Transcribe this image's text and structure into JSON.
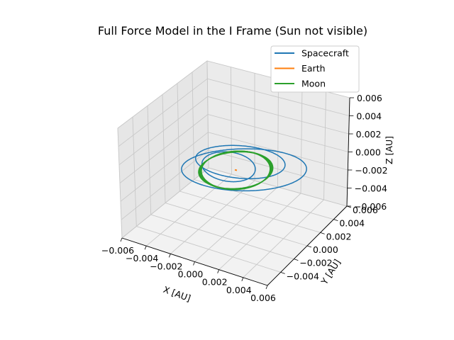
{
  "chart_data": {
    "type": "line",
    "projection": "3d",
    "title": "Full Force Model in the I Frame (Sun not visible)",
    "xlabel": "X [AU]",
    "ylabel": "Y [AU]",
    "zlabel": "Z [AU]",
    "xlim": [
      -0.006,
      0.006
    ],
    "ylim": [
      -0.006,
      0.006
    ],
    "zlim": [
      -0.006,
      0.006
    ],
    "xticks": [
      "−0.006",
      "−0.004",
      "−0.002",
      "0.000",
      "0.002",
      "0.004",
      "0.006"
    ],
    "yticks": [
      "−0.004",
      "−0.002",
      "0.000",
      "0.002",
      "0.004",
      "0.006"
    ],
    "zticks": [
      "−0.006",
      "−0.004",
      "−0.002",
      "0.000",
      "0.002",
      "0.004",
      "0.006"
    ],
    "grid": true,
    "legend_position": "top-right",
    "series": [
      {
        "name": "Spacecraft",
        "color": "#1f77b4",
        "description": "inclined elliptical orbits about Earth, semi-major axis up to about 0.0045 AU",
        "orbits": [
          {
            "cx": 0.0006,
            "cy": 0.0002,
            "a": 0.0045,
            "b": 0.0025,
            "rot_deg": 30,
            "incl_deg": 8
          },
          {
            "cx": -0.0002,
            "cy": 0.001,
            "a": 0.0033,
            "b": 0.002,
            "rot_deg": 15,
            "incl_deg": 6
          },
          {
            "cx": -0.0006,
            "cy": 0.0,
            "a": 0.0022,
            "b": 0.0017,
            "rot_deg": -20,
            "incl_deg": 5
          }
        ]
      },
      {
        "name": "Earth",
        "color": "#ff7f0e",
        "points": [
          [
            -8e-05,
            0.0,
            0.0
          ],
          [
            8e-05,
            0.0,
            0.0
          ]
        ]
      },
      {
        "name": "Moon",
        "color": "#2ca02c",
        "orbit": {
          "cx": 0.0,
          "cy": 0.0,
          "r": 0.00257,
          "incl_deg": 5,
          "loops": 5
        }
      }
    ]
  }
}
